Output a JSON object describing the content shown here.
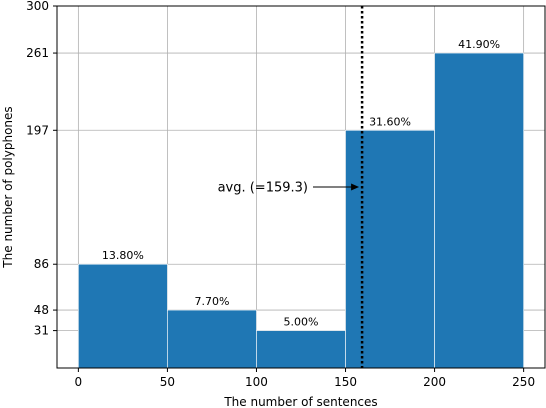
{
  "chart_data": {
    "type": "bar",
    "title": "",
    "xlabel": "The number of sentences",
    "ylabel": "The number of polyphones",
    "xlim": [
      -12,
      262
    ],
    "ylim": [
      0,
      300
    ],
    "grid": true,
    "bars": [
      {
        "x0": 0,
        "x1": 50,
        "value": 86,
        "label": "13.80%"
      },
      {
        "x0": 50,
        "x1": 100,
        "value": 48,
        "label": "7.70%"
      },
      {
        "x0": 100,
        "x1": 150,
        "value": 31,
        "label": "5.00%"
      },
      {
        "x0": 150,
        "x1": 200,
        "value": 197,
        "label": "31.60%"
      },
      {
        "x0": 200,
        "x1": 250,
        "value": 261,
        "label": "41.90%"
      }
    ],
    "xticks": [
      0,
      50,
      100,
      150,
      200,
      250
    ],
    "xtick_labels": [
      "0",
      "50",
      "100",
      "150",
      "200",
      "250"
    ],
    "yticks": [
      31,
      48,
      86,
      197,
      261,
      300
    ],
    "ytick_labels": [
      "31",
      "48",
      "86",
      "197",
      "261",
      "300"
    ],
    "average_line": {
      "x": 159.3,
      "style": "dotted"
    },
    "annotation": {
      "text": "avg. (=159.3)",
      "arrow_to": [
        159.3,
        150
      ]
    },
    "colors": {
      "bar": "#1f77b4",
      "grid": "#b0b0b0"
    }
  }
}
